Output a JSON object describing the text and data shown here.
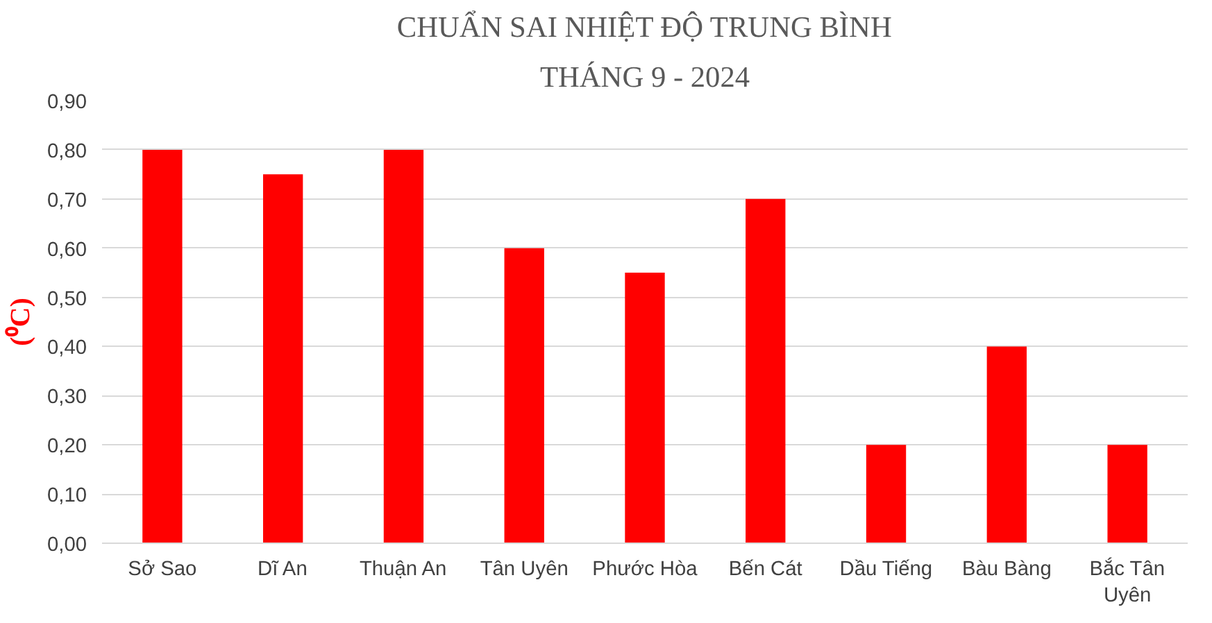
{
  "chart_data": {
    "type": "bar",
    "title": "CHUẨN SAI NHIỆT ĐỘ TRUNG BÌNH",
    "subtitle": "THÁNG 9 - 2024",
    "ylabel": "(⁰C)",
    "categories": [
      "Sở Sao",
      "Dĩ An",
      "Thuận An",
      "Tân Uyên",
      "Phước Hòa",
      "Bến Cát",
      "Dầu Tiếng",
      "Bàu Bàng",
      "Bắc Tân Uyên"
    ],
    "values": [
      0.8,
      0.75,
      0.8,
      0.6,
      0.55,
      0.7,
      0.2,
      0.4,
      0.2
    ],
    "color": "#ff0000",
    "ylim": [
      0,
      0.9
    ],
    "yticks": [
      {
        "value": 0,
        "label": "0,00"
      },
      {
        "value": 0.1,
        "label": "0,10"
      },
      {
        "value": 0.2,
        "label": "0,20"
      },
      {
        "value": 0.3,
        "label": "0,30"
      },
      {
        "value": 0.4,
        "label": "0,40"
      },
      {
        "value": 0.5,
        "label": "0,50"
      },
      {
        "value": 0.6,
        "label": "0,60"
      },
      {
        "value": 0.7,
        "label": "0,70"
      },
      {
        "value": 0.8,
        "label": "0,80"
      },
      {
        "value": 0.9,
        "label": "0,90"
      }
    ],
    "grid": "y"
  }
}
